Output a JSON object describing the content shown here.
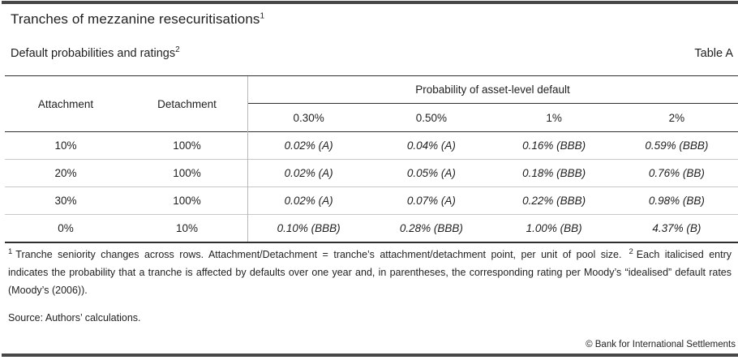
{
  "header": {
    "title": "Tranches of mezzanine resecuritisations",
    "title_footnote_marker": "1",
    "subtitle": "Default probabilities and ratings",
    "subtitle_footnote_marker": "2",
    "table_label": "Table A"
  },
  "table": {
    "row_headers": [
      "Attachment",
      "Detachment"
    ],
    "span_header": "Probability of asset-level default",
    "sub_headers": [
      "0.30%",
      "0.50%",
      "1%",
      "2%"
    ],
    "rows": [
      {
        "attachment": "10%",
        "detachment": "100%",
        "values": [
          "0.02% (A)",
          "0.04% (A)",
          "0.16% (BBB)",
          "0.59% (BBB)"
        ]
      },
      {
        "attachment": "20%",
        "detachment": "100%",
        "values": [
          "0.02% (A)",
          "0.05% (A)",
          "0.18% (BBB)",
          "0.76% (BB)"
        ]
      },
      {
        "attachment": "30%",
        "detachment": "100%",
        "values": [
          "0.02% (A)",
          "0.07% (A)",
          "0.22% (BBB)",
          "0.98% (BB)"
        ]
      },
      {
        "attachment": "0%",
        "detachment": "10%",
        "values": [
          "0.10% (BBB)",
          "0.28% (BBB)",
          "1.00% (BB)",
          "4.37% (B)"
        ]
      }
    ]
  },
  "footnotes": {
    "marker1": "1",
    "text1": "Tranche seniority changes across rows. Attachment/Detachment = tranche’s attachment/detachment point, per unit of pool size.",
    "marker2": "2",
    "text2": "Each italicised entry indicates the probability that a tranche is affected by defaults over one year and, in parentheses, the corresponding rating per Moody’s “idealised” default rates (Moody’s (2006))."
  },
  "source": "Source: Authors’ calculations.",
  "copyright": "© Bank for International Settlements"
}
